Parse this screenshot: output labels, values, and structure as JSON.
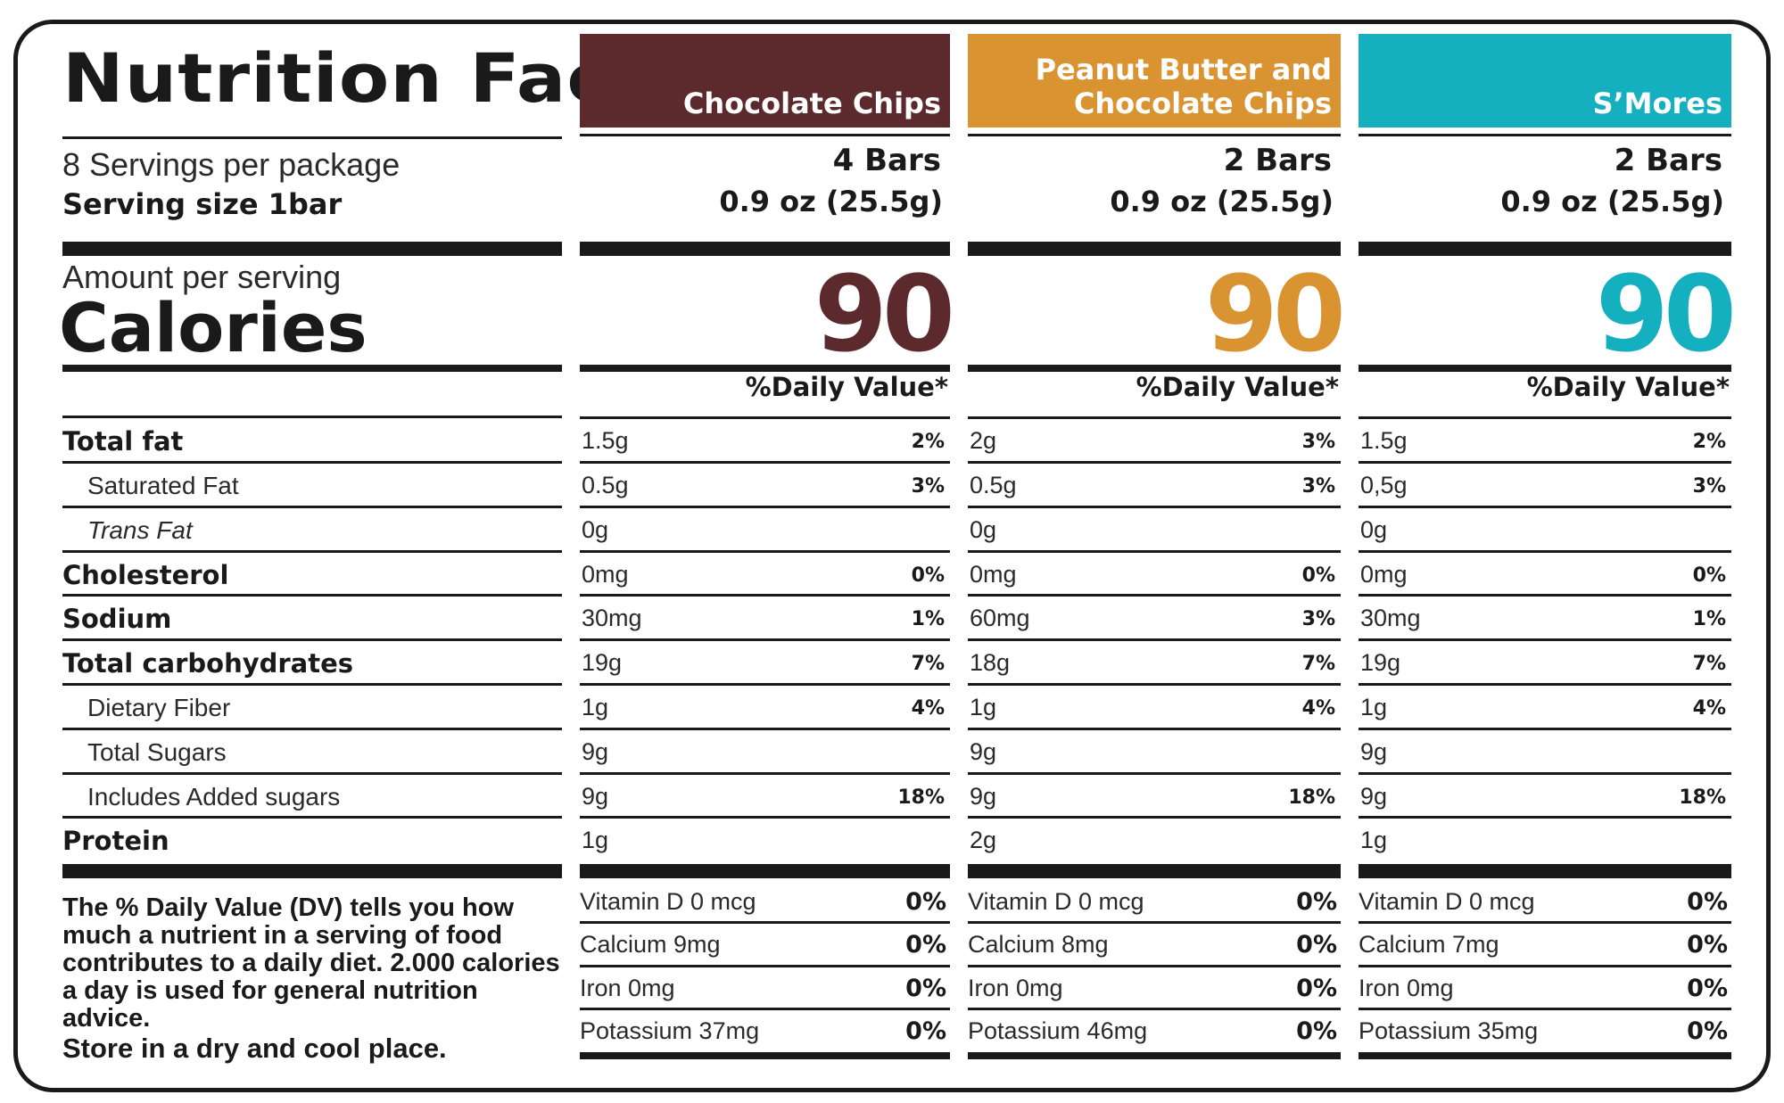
{
  "title": "Nutrition Facts",
  "servings_per_package": "8 Servings per package",
  "serving_size": "Serving size 1bar",
  "amount_per_serving": "Amount per serving",
  "calories_label": "Calories",
  "daily_value_header": "%Daily Value*",
  "nutrient_labels": [
    "Total fat",
    "Saturated Fat",
    "Trans Fat",
    "Cholesterol",
    "Sodium",
    "Total carbohydrates",
    "Dietary Fiber",
    "Total Sugars",
    "Includes Added sugars",
    "Protein"
  ],
  "dv_note": "The % Daily Value (DV) tells you how much a nutrient in a serving of food contributes to a daily diet. 2.000 calories a day is used for general nutrition advice.",
  "storage_note": "Store in a dry and cool place.",
  "products": [
    {
      "name_lines": [
        "Chocolate Chips"
      ],
      "color": "#5c2a2c",
      "serving_qty": "4 Bars",
      "serving_weight": "0.9 oz (25.5g)",
      "calories": "90",
      "daily_value_header": "%Daily Value*",
      "nutrients": [
        {
          "amount": "1.5g",
          "dv": "2%"
        },
        {
          "amount": "0.5g",
          "dv": "3%"
        },
        {
          "amount": "0g",
          "dv": ""
        },
        {
          "amount": "0mg",
          "dv": "0%"
        },
        {
          "amount": "30mg",
          "dv": "1%"
        },
        {
          "amount": "19g",
          "dv": "7%"
        },
        {
          "amount": "1g",
          "dv": "4%"
        },
        {
          "amount": "9g",
          "dv": ""
        },
        {
          "amount": "9g",
          "dv": "18%"
        },
        {
          "amount": "1g",
          "dv": ""
        }
      ],
      "vitamins": [
        {
          "label": "Vitamin D 0 mcg",
          "dv": "0%"
        },
        {
          "label": "Calcium 9mg",
          "dv": "0%"
        },
        {
          "label": "Iron 0mg",
          "dv": "0%"
        },
        {
          "label": "Potassium 37mg",
          "dv": "0%"
        }
      ]
    },
    {
      "name_lines": [
        "Peanut Butter and",
        "Chocolate Chips"
      ],
      "color": "#d99331",
      "serving_qty": "2 Bars",
      "serving_weight": "0.9 oz (25.5g)",
      "calories": "90",
      "daily_value_header": "%Daily Value*",
      "nutrients": [
        {
          "amount": "2g",
          "dv": "3%"
        },
        {
          "amount": "0.5g",
          "dv": "3%"
        },
        {
          "amount": "0g",
          "dv": ""
        },
        {
          "amount": "0mg",
          "dv": "0%"
        },
        {
          "amount": "60mg",
          "dv": "3%"
        },
        {
          "amount": "18g",
          "dv": "7%"
        },
        {
          "amount": "1g",
          "dv": "4%"
        },
        {
          "amount": "9g",
          "dv": ""
        },
        {
          "amount": "9g",
          "dv": "18%"
        },
        {
          "amount": "2g",
          "dv": ""
        }
      ],
      "vitamins": [
        {
          "label": "Vitamin D 0 mcg",
          "dv": "0%"
        },
        {
          "label": "Calcium 8mg",
          "dv": "0%"
        },
        {
          "label": "Iron 0mg",
          "dv": "0%"
        },
        {
          "label": "Potassium 46mg",
          "dv": "0%"
        }
      ]
    },
    {
      "name_lines": [
        "S’Mores"
      ],
      "color": "#14b0bf",
      "serving_qty": "2 Bars",
      "serving_weight": "0.9 oz (25.5g)",
      "calories": "90",
      "daily_value_header": "%Daily Value*",
      "nutrients": [
        {
          "amount": "1.5g",
          "dv": "2%"
        },
        {
          "amount": "0,5g",
          "dv": "3%"
        },
        {
          "amount": "0g",
          "dv": ""
        },
        {
          "amount": "0mg",
          "dv": "0%"
        },
        {
          "amount": "30mg",
          "dv": "1%"
        },
        {
          "amount": "19g",
          "dv": "7%"
        },
        {
          "amount": "1g",
          "dv": "4%"
        },
        {
          "amount": "9g",
          "dv": ""
        },
        {
          "amount": "9g",
          "dv": "18%"
        },
        {
          "amount": "1g",
          "dv": ""
        }
      ],
      "vitamins": [
        {
          "label": "Vitamin D 0 mcg",
          "dv": "0%"
        },
        {
          "label": "Calcium 7mg",
          "dv": "0%"
        },
        {
          "label": "Iron 0mg",
          "dv": "0%"
        },
        {
          "label": "Potassium 35mg",
          "dv": "0%"
        }
      ]
    }
  ]
}
